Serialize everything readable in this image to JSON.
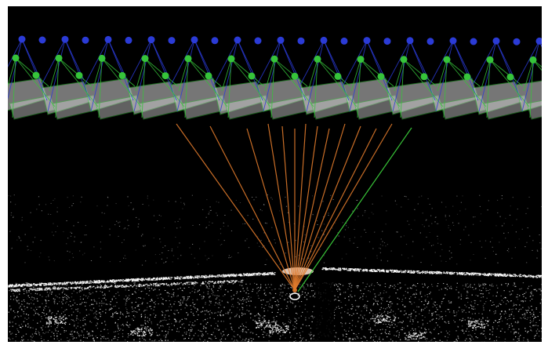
{
  "scene": {
    "background_color": "#000000",
    "camera_colors": {
      "upper_track": "#2b3bd6",
      "lower_track": "#36c43a",
      "frustum_fill": "#d8d8d8"
    },
    "ray_colors": {
      "matched": "#e07a2c",
      "unmatched": "#3ccf3c"
    },
    "point_cloud_color": "#ffffff",
    "target_marker_color": "#ffffff"
  }
}
